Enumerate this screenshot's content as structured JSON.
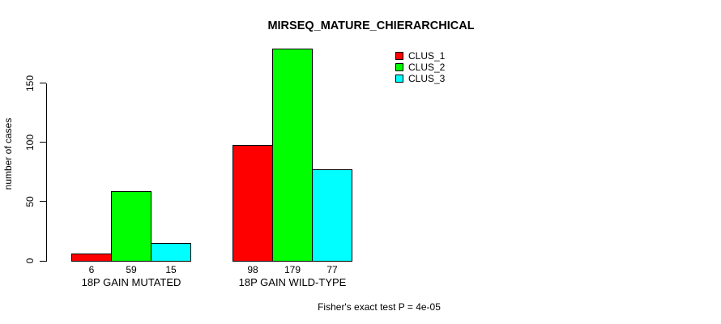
{
  "chart_data": {
    "type": "bar",
    "title": "MIRSEQ_MATURE_CHIERARCHICAL",
    "xlabel": "",
    "ylabel": "number of cases",
    "categories": [
      "18P GAIN MUTATED",
      "18P GAIN WILD-TYPE"
    ],
    "series": [
      {
        "name": "CLUS_1",
        "color": "#ff0000",
        "values": [
          6,
          98
        ]
      },
      {
        "name": "CLUS_2",
        "color": "#00ff00",
        "values": [
          59,
          179
        ]
      },
      {
        "name": "CLUS_3",
        "color": "#00ffff",
        "values": [
          15,
          77
        ]
      }
    ],
    "yticks": [
      0,
      50,
      100,
      150
    ],
    "ylim": [
      0,
      183
    ],
    "grid": false,
    "bar_value_labels_shown": true,
    "legend_position": "top-right",
    "annotation": "Fisher's exact test P = 4e-05"
  },
  "colors": {
    "background": "#ffffff",
    "text": "#000000",
    "bar_border": "#000000"
  }
}
